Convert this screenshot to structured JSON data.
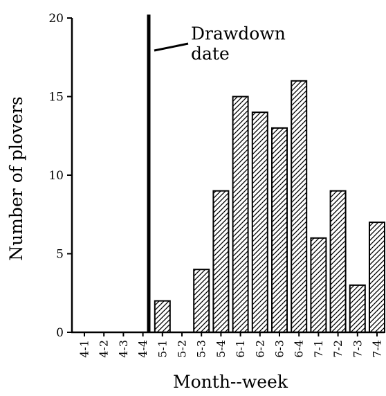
{
  "chart_data": {
    "type": "bar",
    "title": "",
    "xlabel": "Month--week",
    "ylabel": "Number of plovers",
    "categories": [
      "4-1",
      "4-2",
      "4-3",
      "4-4",
      "5-1",
      "5-2",
      "5-3",
      "5-4",
      "6-1",
      "6-2",
      "6-3",
      "6-4",
      "7-1",
      "7-2",
      "7-3",
      "7-4"
    ],
    "values": [
      0,
      0,
      0,
      0,
      2,
      0,
      4,
      9,
      15,
      14,
      13,
      16,
      6,
      9,
      3,
      7
    ],
    "ylim": [
      0,
      20
    ],
    "yticks": [
      0,
      5,
      10,
      15,
      20
    ],
    "grid": false,
    "bar_fill": "diagonal-hatch",
    "annotation": {
      "text_lines": [
        "Drawdown",
        "date"
      ],
      "position": "between 4-4 and 5-1"
    },
    "colors": {
      "bar_stroke": "#000000",
      "hatch": "#000000",
      "background": "#ffffff"
    }
  }
}
